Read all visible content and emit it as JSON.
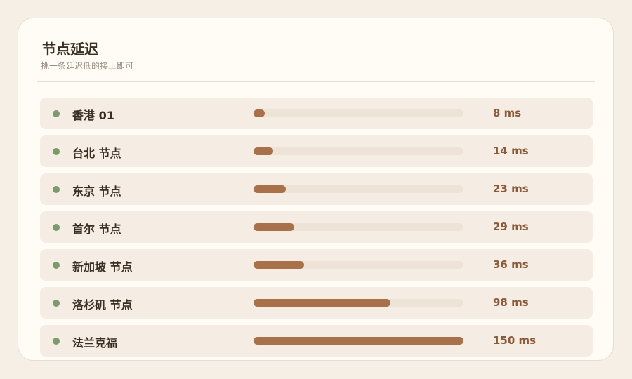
{
  "header": {
    "title": "节点延迟",
    "subtitle": "挑一条延迟低的接上即可"
  },
  "nodes": {
    "names": [
      "香港 01",
      "台北 节点",
      "东京 节点",
      "首尔 节点",
      "新加坡 节点",
      "洛杉矶 节点",
      "法兰克福"
    ],
    "values": [
      8,
      14,
      23,
      29,
      36,
      98,
      150
    ],
    "value_labels": [
      "8 ms",
      "14 ms",
      "23 ms",
      "29 ms",
      "36 ms",
      "98 ms",
      "150 ms"
    ]
  }
}
